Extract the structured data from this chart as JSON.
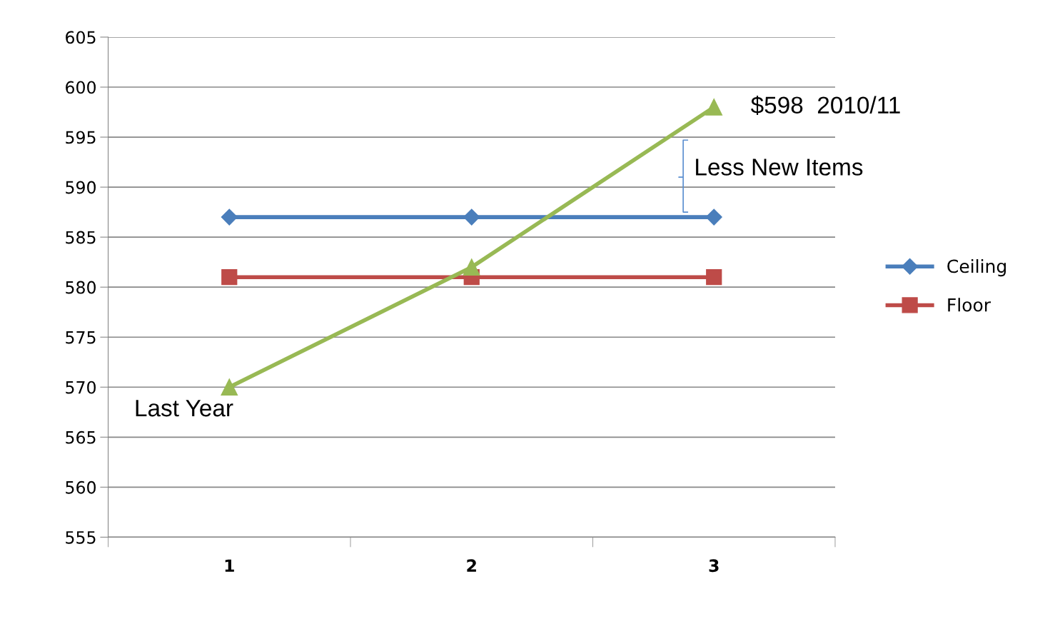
{
  "chart_data": {
    "type": "line",
    "categories": [
      "1",
      "2",
      "3"
    ],
    "series": [
      {
        "name": "Ceiling",
        "color": "#4a7ebb",
        "marker": "diamond",
        "values": [
          587,
          587,
          587
        ]
      },
      {
        "name": "Floor",
        "color": "#be4b48",
        "marker": "square",
        "values": [
          581,
          581,
          581
        ]
      },
      {
        "color": "#98b954",
        "marker": "triangle",
        "values": [
          570,
          582,
          598
        ]
      }
    ],
    "ylim": [
      555,
      605
    ],
    "yticks": [
      555,
      560,
      565,
      570,
      575,
      580,
      585,
      590,
      595,
      600,
      605
    ],
    "grid": "y",
    "legend": "right",
    "annotations": [
      {
        "text": "$598  2010/11",
        "x": "3",
        "y": 598
      },
      "Less New Items",
      {
        "text": "Last Year",
        "x": "1",
        "y": 570
      }
    ]
  }
}
